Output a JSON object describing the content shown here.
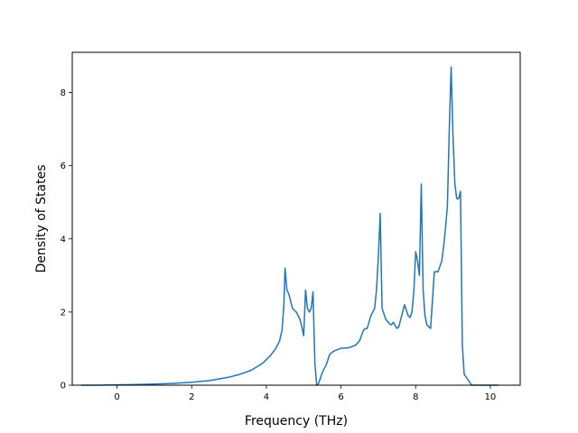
{
  "chart_data": {
    "type": "line",
    "title": "",
    "xlabel": "Frequency (THz)",
    "ylabel": "Density of States",
    "xlim": [
      -1.2,
      10.8
    ],
    "ylim": [
      0,
      9.1
    ],
    "xticks": [
      0,
      2,
      4,
      6,
      8,
      10
    ],
    "yticks": [
      0,
      2,
      4,
      6,
      8
    ],
    "grid": false,
    "colors": {
      "series": "#1f77b4"
    },
    "series": [
      {
        "x": [
          -0.95,
          -0.5,
          0,
          0.5,
          1.0,
          1.5,
          2.0,
          2.5,
          3.0,
          3.3,
          3.6,
          3.9,
          4.1,
          4.25,
          4.35,
          4.42,
          4.47,
          4.5,
          4.55,
          4.6,
          4.7,
          4.8,
          4.9,
          4.95,
          5.0,
          5.05,
          5.1,
          5.15,
          5.2,
          5.25,
          5.3,
          5.35,
          5.4,
          5.45,
          5.5,
          5.6,
          5.7,
          5.8,
          6.0,
          6.2,
          6.4,
          6.5,
          6.6,
          6.65,
          6.7,
          6.8,
          6.9,
          6.95,
          7.0,
          7.05,
          7.1,
          7.2,
          7.3,
          7.35,
          7.4,
          7.5,
          7.55,
          7.6,
          7.7,
          7.8,
          7.85,
          7.9,
          7.95,
          8.0,
          8.05,
          8.1,
          8.15,
          8.2,
          8.25,
          8.3,
          8.4,
          8.5,
          8.6,
          8.7,
          8.75,
          8.8,
          8.85,
          8.9,
          8.95,
          9.0,
          9.05,
          9.1,
          9.15,
          9.2,
          9.25,
          9.3,
          9.5,
          10.0,
          10.2
        ],
        "values": [
          0,
          0,
          0.01,
          0.02,
          0.03,
          0.05,
          0.08,
          0.13,
          0.22,
          0.3,
          0.41,
          0.6,
          0.8,
          1.0,
          1.2,
          1.5,
          2.2,
          3.2,
          2.6,
          2.5,
          2.1,
          2.0,
          1.8,
          1.6,
          1.35,
          2.6,
          2.1,
          2.0,
          2.1,
          2.55,
          0.6,
          0.0,
          0.05,
          0.2,
          0.35,
          0.55,
          0.85,
          0.93,
          1.01,
          1.02,
          1.1,
          1.22,
          1.5,
          1.55,
          1.55,
          1.9,
          2.1,
          2.6,
          3.5,
          4.7,
          2.1,
          1.8,
          1.68,
          1.65,
          1.72,
          1.55,
          1.6,
          1.8,
          2.2,
          1.9,
          1.85,
          2.0,
          2.55,
          3.65,
          3.4,
          3.0,
          5.5,
          2.6,
          1.9,
          1.65,
          1.55,
          3.1,
          3.1,
          3.4,
          3.8,
          4.3,
          4.9,
          7.0,
          8.7,
          6.8,
          5.5,
          5.1,
          5.1,
          5.3,
          1.1,
          0.3,
          0,
          0,
          0
        ]
      }
    ]
  }
}
